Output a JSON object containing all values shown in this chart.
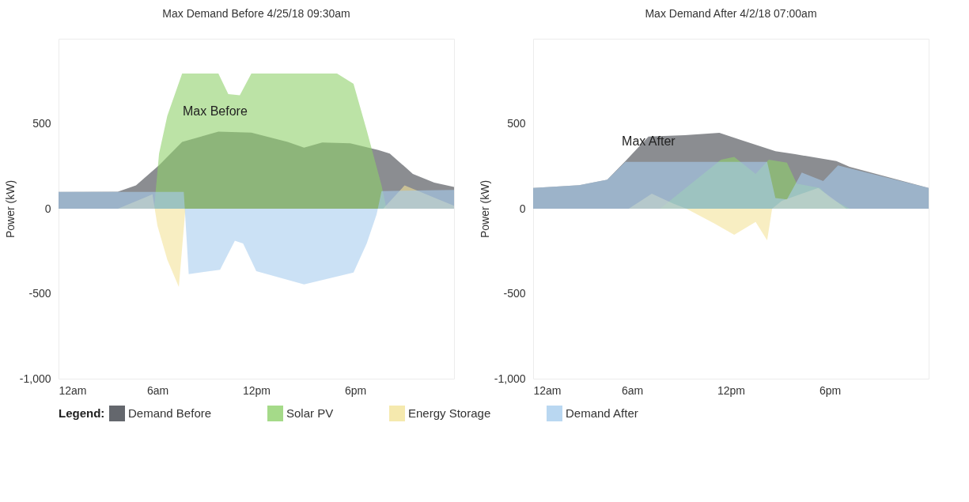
{
  "chart_data": [
    {
      "type": "area",
      "title": "Max Demand Before 4/25/18 09:30am",
      "ylabel": "Power (kW)",
      "legend": "bottom",
      "legend_title": "Legend:",
      "xlim": [
        "--04-25T00:00",
        "--04-26T00:00"
      ],
      "xticks": [
        {
          "value": "--04-25T00:00",
          "label": "12am"
        },
        {
          "value": "--04-25T06:00",
          "label": "6am"
        },
        {
          "value": "--04-25T12:00",
          "label": "12pm"
        },
        {
          "value": "--04-25T18:00",
          "label": "6pm"
        }
      ],
      "ylim": [
        -1000,
        1000
      ],
      "yticks": [
        {
          "value": -1000,
          "label": "-1,000"
        },
        -500,
        0,
        500
      ],
      "annotations": [
        {
          "text": "Max Before",
          "x": "--04-25T09:30",
          "y": 453
        }
      ],
      "series": [
        {
          "name": "Demand Before",
          "color": "#3d4148",
          "x": [
            "--04-25T00:00",
            "--04-25T03:36",
            "--04-25T04:42",
            "--04-25T06:06",
            "--04-25T07:30",
            "--04-25T09:42",
            "--04-25T11:42",
            "--04-25T13:54",
            "--04-25T14:54",
            "--04-25T16:00",
            "--04-25T17:42",
            "--04-25T19:24",
            "--04-25T20:06",
            "--04-25T21:30",
            "--04-25T22:48",
            "--04-26T00:00"
          ],
          "values": [
            99,
            100,
            137,
            256,
            393,
            453,
            448,
            393,
            359,
            390,
            385,
            345,
            325,
            205,
            154,
            128
          ]
        },
        {
          "name": "Solar PV",
          "color": "#8fd16b",
          "x": [
            "--04-25T00:00",
            "--04-25T05:48",
            "--04-25T06:06",
            "--04-25T06:36",
            "--04-25T07:30",
            "--04-25T09:42",
            "--04-25T10:18",
            "--04-25T11:00",
            "--04-25T11:42",
            "--04-25T16:54",
            "--04-25T17:54",
            "--04-25T18:42",
            "--04-25T19:36",
            "--04-25T19:54",
            "--04-26T00:00"
          ],
          "values": [
            0,
            0,
            325,
            547,
            795,
            795,
            675,
            667,
            795,
            795,
            735,
            462,
            137,
            0,
            0
          ]
        },
        {
          "name": "Energy Storage",
          "color": "#f3e39a",
          "x": [
            "--04-25T00:00",
            "--04-25T03:36",
            "--04-25T05:24",
            "--04-25T05:42",
            "--04-25T06:00",
            "--04-25T06:36",
            "--04-25T07:18",
            "--04-25T07:42",
            "--04-25T19:42",
            "--04-25T21:00",
            "--04-26T00:00"
          ],
          "values": [
            0,
            0,
            72,
            85,
            -100,
            -300,
            -460,
            0,
            0,
            137,
            17
          ]
        },
        {
          "name": "Demand After",
          "color": "#a8cdee",
          "x": [
            "--04-25T00:00",
            "--04-25T07:36",
            "--04-25T07:54",
            "--04-25T09:48",
            "--04-25T10:42",
            "--04-25T11:12",
            "--04-25T12:00",
            "--04-25T14:54",
            "--04-25T17:54",
            "--04-25T18:42",
            "--04-25T19:18",
            "--04-25T19:36",
            "--04-26T00:00"
          ],
          "values": [
            99,
            99,
            -385,
            -359,
            -188,
            -205,
            -368,
            -445,
            -376,
            -205,
            -34,
            103,
            111
          ]
        }
      ]
    },
    {
      "type": "area",
      "title": "Max Demand After 4/2/18 07:00am",
      "ylabel": "Power (kW)",
      "xlim": [
        "--04-02T00:00",
        "--04-03T00:00"
      ],
      "xticks": [
        {
          "value": "--04-02T00:00",
          "label": "12am"
        },
        {
          "value": "--04-02T06:00",
          "label": "6am"
        },
        {
          "value": "--04-02T12:00",
          "label": "12pm"
        },
        {
          "value": "--04-02T18:00",
          "label": "6pm"
        }
      ],
      "ylim": [
        -1000,
        1000
      ],
      "yticks": [
        {
          "value": -1000,
          "label": "-1,000"
        },
        -500,
        0,
        500
      ],
      "annotations": [
        {
          "text": "Max After",
          "x": "--04-02T07:00",
          "y": 276
        }
      ],
      "series": [
        {
          "name": "Demand Before",
          "color": "#3d4148",
          "x": [
            "--04-02T00:00",
            "--04-02T02:48",
            "--04-02T04:30",
            "--04-02T05:36",
            "--04-02T07:00",
            "--04-02T09:12",
            "--04-02T11:18",
            "--04-02T12:36",
            "--04-02T14:42",
            "--04-02T15:54",
            "--04-02T18:24",
            "--04-02T19:12",
            "--04-03T00:00"
          ],
          "values": [
            122,
            138,
            171,
            280,
            425,
            433,
            446,
            405,
            338,
            321,
            280,
            246,
            122
          ]
        },
        {
          "name": "Solar PV",
          "color": "#8fd16b",
          "x": [
            "--04-02T00:00",
            "--04-02T07:42",
            "--04-02T11:24",
            "--04-02T12:12",
            "--04-02T13:30",
            "--04-02T14:18",
            "--04-02T15:24",
            "--04-02T16:00",
            "--04-02T17:24",
            "--04-02T18:00",
            "--04-02T19:12",
            "--04-03T00:00"
          ],
          "values": [
            0,
            0,
            288,
            305,
            205,
            288,
            271,
            147,
            122,
            63,
            0,
            0
          ]
        },
        {
          "name": "Energy Storage",
          "color": "#f3e39a",
          "x": [
            "--04-02T00:00",
            "--04-02T05:48",
            "--04-02T07:12",
            "--04-02T08:30",
            "--04-02T09:18",
            "--04-02T11:00",
            "--04-02T12:12",
            "--04-02T13:30",
            "--04-02T14:12",
            "--04-02T14:30",
            "--04-02T15:06",
            "--04-02T16:18",
            "--04-02T17:18",
            "--04-02T19:00",
            "--04-03T00:00"
          ],
          "values": [
            0,
            0,
            88,
            30,
            0,
            -87,
            -153,
            -78,
            -186,
            0,
            47,
            88,
            122,
            0,
            0
          ]
        },
        {
          "name": "Demand After",
          "color": "#a8cdee",
          "x": [
            "--04-02T00:00",
            "--04-02T02:48",
            "--04-02T04:30",
            "--04-02T05:36",
            "--04-02T14:12",
            "--04-02T14:42",
            "--04-02T15:24",
            "--04-02T16:18",
            "--04-02T17:36",
            "--04-02T18:30",
            "--04-03T00:00"
          ],
          "values": [
            122,
            138,
            171,
            276,
            276,
            63,
            55,
            213,
            163,
            255,
            122
          ]
        }
      ]
    }
  ]
}
